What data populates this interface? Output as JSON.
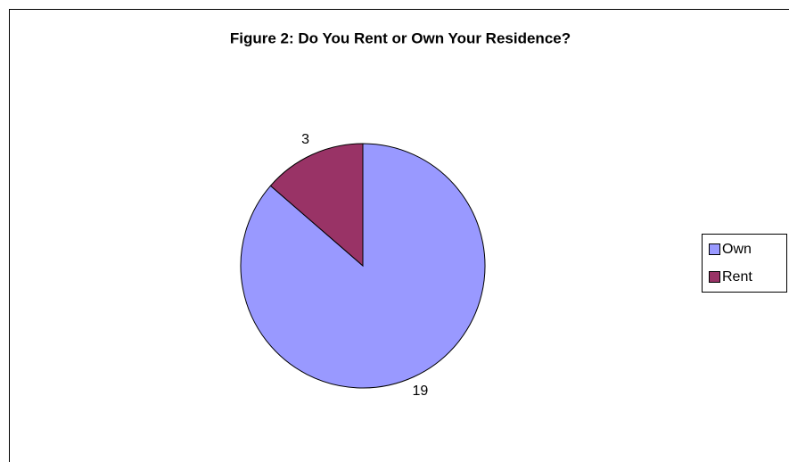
{
  "chart_data": {
    "type": "pie",
    "title": "Figure 2: Do You Rent or Own Your Residence?",
    "categories": [
      "Own",
      "Rent"
    ],
    "values": [
      19,
      3
    ],
    "colors": [
      "#9999ff",
      "#993366"
    ],
    "legend": "right"
  }
}
